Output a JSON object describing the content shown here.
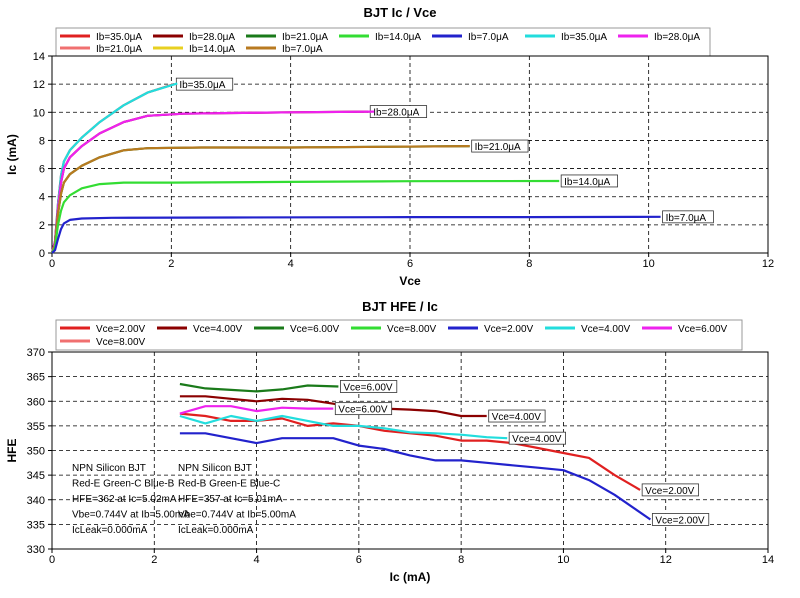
{
  "chart_data": [
    {
      "type": "line",
      "title": "BJT Ic / Vce",
      "xlabel": "Vce",
      "ylabel": "Ic (mA)",
      "xlim": [
        0,
        12
      ],
      "ylim": [
        0,
        14
      ],
      "xticks": [
        "0",
        "2",
        "4",
        "6",
        "8",
        "10",
        "12"
      ],
      "yticks": [
        "0",
        "2",
        "4",
        "6",
        "8",
        "10",
        "12",
        "14"
      ],
      "grid": true,
      "legend_position": "top",
      "legend": [
        {
          "label": "Ib=35.0μA",
          "color": "#e02020"
        },
        {
          "label": "Ib=28.0μA",
          "color": "#8b0000"
        },
        {
          "label": "Ib=21.0μA",
          "color": "#1a7a1a"
        },
        {
          "label": "Ib=14.0μA",
          "color": "#33dd33"
        },
        {
          "label": "Ib=7.0μA",
          "color": "#2222cc"
        },
        {
          "label": "Ib=35.0μA",
          "color": "#22dddd"
        },
        {
          "label": "Ib=28.0μA",
          "color": "#ee22ee"
        },
        {
          "label": "Ib=21.0μA",
          "color": "#f07070"
        },
        {
          "label": "Ib=14.0μA",
          "color": "#e8d020"
        },
        {
          "label": "Ib=7.0μA",
          "color": "#b87a20"
        }
      ],
      "series": [
        {
          "name": "Ib=35.0μA",
          "color": "#e02020",
          "end_label": "Ib=35.0μA",
          "points": [
            [
              0,
              0
            ],
            [
              0.05,
              0.8
            ],
            [
              0.1,
              3.5
            ],
            [
              0.15,
              5.5
            ],
            [
              0.2,
              6.5
            ],
            [
              0.3,
              7.3
            ],
            [
              0.5,
              8.2
            ],
            [
              0.8,
              9.3
            ],
            [
              1.2,
              10.5
            ],
            [
              1.6,
              11.4
            ],
            [
              2.05,
              12.0
            ]
          ]
        },
        {
          "name": "Ib=35.0μA",
          "color": "#22dddd",
          "points": [
            [
              0,
              0
            ],
            [
              0.05,
              0.8
            ],
            [
              0.1,
              3.5
            ],
            [
              0.15,
              5.5
            ],
            [
              0.2,
              6.5
            ],
            [
              0.3,
              7.3
            ],
            [
              0.5,
              8.2
            ],
            [
              0.8,
              9.3
            ],
            [
              1.2,
              10.5
            ],
            [
              1.6,
              11.4
            ],
            [
              2.1,
              12.05
            ]
          ]
        },
        {
          "name": "Ib=28.0μA",
          "color": "#8b0000",
          "end_label": "Ib=28.0μA",
          "points": [
            [
              0,
              0
            ],
            [
              0.05,
              0.8
            ],
            [
              0.1,
              3.2
            ],
            [
              0.15,
              5.0
            ],
            [
              0.2,
              6.0
            ],
            [
              0.3,
              6.8
            ],
            [
              0.5,
              7.6
            ],
            [
              0.8,
              8.5
            ],
            [
              1.2,
              9.3
            ],
            [
              1.6,
              9.75
            ],
            [
              2.2,
              9.9
            ],
            [
              3,
              9.95
            ],
            [
              4,
              10.0
            ],
            [
              5.3,
              10.05
            ]
          ]
        },
        {
          "name": "Ib=28.0μA",
          "color": "#ee22ee",
          "points": [
            [
              0,
              0
            ],
            [
              0.05,
              0.8
            ],
            [
              0.1,
              3.2
            ],
            [
              0.15,
              5.0
            ],
            [
              0.2,
              6.0
            ],
            [
              0.3,
              6.8
            ],
            [
              0.5,
              7.6
            ],
            [
              0.8,
              8.5
            ],
            [
              1.2,
              9.3
            ],
            [
              1.6,
              9.75
            ],
            [
              2.2,
              9.9
            ],
            [
              3,
              9.95
            ],
            [
              4,
              10.0
            ],
            [
              5.4,
              10.05
            ]
          ]
        },
        {
          "name": "Ib=21.0μA",
          "color": "#1a7a1a",
          "end_label": "Ib=21.0μA",
          "points": [
            [
              0,
              0
            ],
            [
              0.05,
              0.6
            ],
            [
              0.1,
              2.8
            ],
            [
              0.15,
              4.2
            ],
            [
              0.2,
              5.0
            ],
            [
              0.3,
              5.6
            ],
            [
              0.5,
              6.2
            ],
            [
              0.8,
              6.8
            ],
            [
              1.2,
              7.3
            ],
            [
              1.6,
              7.45
            ],
            [
              2.5,
              7.5
            ],
            [
              4,
              7.5
            ],
            [
              5.5,
              7.55
            ],
            [
              7.0,
              7.6
            ]
          ]
        },
        {
          "name": "Ib=21.0μA",
          "color": "#b87a20",
          "points": [
            [
              0,
              0
            ],
            [
              0.05,
              0.6
            ],
            [
              0.1,
              2.8
            ],
            [
              0.15,
              4.2
            ],
            [
              0.2,
              5.0
            ],
            [
              0.3,
              5.6
            ],
            [
              0.5,
              6.2
            ],
            [
              0.8,
              6.8
            ],
            [
              1.2,
              7.3
            ],
            [
              1.6,
              7.45
            ],
            [
              2.5,
              7.5
            ],
            [
              4,
              7.5
            ],
            [
              5.5,
              7.55
            ],
            [
              7.0,
              7.6
            ]
          ]
        },
        {
          "name": "Ib=14.0μA",
          "color": "#33dd33",
          "end_label": "Ib=14.0μA",
          "points": [
            [
              0,
              0
            ],
            [
              0.05,
              0.4
            ],
            [
              0.1,
              2.0
            ],
            [
              0.15,
              3.0
            ],
            [
              0.2,
              3.6
            ],
            [
              0.3,
              4.1
            ],
            [
              0.5,
              4.6
            ],
            [
              0.8,
              4.9
            ],
            [
              1.2,
              5.0
            ],
            [
              2,
              5.0
            ],
            [
              4,
              5.05
            ],
            [
              6,
              5.1
            ],
            [
              8.5,
              5.12
            ]
          ]
        },
        {
          "name": "Ib=7.0μA",
          "color": "#2222cc",
          "end_label": "Ib=7.0μA",
          "points": [
            [
              0,
              0
            ],
            [
              0.05,
              0.2
            ],
            [
              0.1,
              1.0
            ],
            [
              0.15,
              1.7
            ],
            [
              0.2,
              2.1
            ],
            [
              0.3,
              2.35
            ],
            [
              0.5,
              2.45
            ],
            [
              1,
              2.5
            ],
            [
              3,
              2.52
            ],
            [
              6,
              2.55
            ],
            [
              8,
              2.55
            ],
            [
              10.2,
              2.57
            ]
          ]
        }
      ]
    },
    {
      "type": "line",
      "title": "BJT HFE / Ic",
      "xlabel": "Ic (mA)",
      "ylabel": "HFE",
      "xlim": [
        0,
        14
      ],
      "ylim": [
        330,
        370
      ],
      "xticks": [
        "0",
        "2",
        "4",
        "6",
        "8",
        "10",
        "12",
        "14"
      ],
      "yticks": [
        "330",
        "335",
        "340",
        "345",
        "350",
        "355",
        "360",
        "365",
        "370"
      ],
      "grid": true,
      "legend_position": "top",
      "legend": [
        {
          "label": "Vce=2.00V",
          "color": "#e02020"
        },
        {
          "label": "Vce=4.00V",
          "color": "#8b0000"
        },
        {
          "label": "Vce=6.00V",
          "color": "#1a7a1a"
        },
        {
          "label": "Vce=8.00V",
          "color": "#33dd33"
        },
        {
          "label": "Vce=2.00V",
          "color": "#2222cc"
        },
        {
          "label": "Vce=4.00V",
          "color": "#22dddd"
        },
        {
          "label": "Vce=6.00V",
          "color": "#ee22ee"
        },
        {
          "label": "Vce=8.00V",
          "color": "#f07070"
        }
      ],
      "series": [
        {
          "name": "Vce=2.00V",
          "color": "#e02020",
          "end_label": "Vce=2.00V",
          "points": [
            [
              2.5,
              357.5
            ],
            [
              3,
              357
            ],
            [
              3.5,
              356
            ],
            [
              4,
              356
            ],
            [
              4.5,
              356.5
            ],
            [
              5,
              355
            ],
            [
              5.5,
              355.5
            ],
            [
              6,
              355
            ],
            [
              6.5,
              354
            ],
            [
              7,
              353.5
            ],
            [
              7.5,
              353
            ],
            [
              8,
              352
            ],
            [
              8.5,
              352
            ],
            [
              9,
              351.5
            ],
            [
              9.5,
              350.5
            ],
            [
              10,
              349.5
            ],
            [
              10.5,
              348.5
            ],
            [
              11,
              345
            ],
            [
              11.5,
              342
            ]
          ]
        },
        {
          "name": "Vce=4.00V",
          "color": "#8b0000",
          "end_label": "Vce=4.00V",
          "points": [
            [
              2.5,
              361
            ],
            [
              3,
              361
            ],
            [
              3.5,
              360.5
            ],
            [
              4,
              360
            ],
            [
              4.5,
              360.5
            ],
            [
              5,
              360.3
            ],
            [
              5.5,
              359.5
            ],
            [
              6,
              358.5
            ],
            [
              6.5,
              358.5
            ],
            [
              7,
              358.3
            ],
            [
              7.5,
              358
            ],
            [
              8,
              357
            ],
            [
              8.5,
              357
            ]
          ]
        },
        {
          "name": "Vce=6.00V",
          "color": "#1a7a1a",
          "end_label": "Vce=6.00V",
          "points": [
            [
              2.5,
              363.5
            ],
            [
              3,
              362.6
            ],
            [
              3.5,
              362.3
            ],
            [
              4,
              362
            ],
            [
              4.5,
              362.4
            ],
            [
              5,
              363.2
            ],
            [
              5.6,
              363
            ]
          ]
        },
        {
          "name": "Vce=2.00V",
          "color": "#2222cc",
          "end_label": "Vce=2.00V",
          "points": [
            [
              2.5,
              353.5
            ],
            [
              3,
              353.5
            ],
            [
              3.5,
              352.5
            ],
            [
              4,
              351.5
            ],
            [
              4.5,
              352.5
            ],
            [
              5,
              352.5
            ],
            [
              5.5,
              352.5
            ],
            [
              6,
              351
            ],
            [
              6.5,
              350.3
            ],
            [
              7,
              349
            ],
            [
              7.5,
              348
            ],
            [
              8,
              348
            ],
            [
              8.5,
              347.5
            ],
            [
              9,
              347
            ],
            [
              9.5,
              346.5
            ],
            [
              10,
              346
            ],
            [
              10.5,
              344
            ],
            [
              11,
              341
            ],
            [
              11.7,
              336
            ]
          ]
        },
        {
          "name": "Vce=4.00V",
          "color": "#22dddd",
          "end_label": "Vce=4.00V",
          "points": [
            [
              2.5,
              357
            ],
            [
              3,
              355.5
            ],
            [
              3.5,
              357
            ],
            [
              4,
              356
            ],
            [
              4.5,
              357
            ],
            [
              5,
              356
            ],
            [
              5.5,
              355
            ],
            [
              6,
              355
            ],
            [
              6.5,
              354.5
            ],
            [
              7,
              353.7
            ],
            [
              7.5,
              353.5
            ],
            [
              8,
              353.2
            ],
            [
              8.5,
              352.7
            ],
            [
              8.9,
              352.5
            ]
          ]
        },
        {
          "name": "Vce=6.00V",
          "color": "#ee22ee",
          "end_label": "Vce=6.00V",
          "points": [
            [
              2.5,
              357.5
            ],
            [
              3,
              359
            ],
            [
              3.5,
              359
            ],
            [
              4,
              358
            ],
            [
              4.5,
              358.7
            ],
            [
              5,
              358.5
            ],
            [
              5.5,
              358.5
            ]
          ]
        }
      ],
      "annotations": [
        {
          "anchor": "left",
          "lines": [
            "NPN Silicon BJT",
            "Red-E Green-C Blue-B",
            "HFE=362 at Ic=5.02mA",
            "Vbe=0.744V at Ib=5.00mA",
            "IcLeak=0.000mA"
          ]
        },
        {
          "anchor": "middle",
          "lines": [
            "NPN Silicon BJT",
            "Red-B Green-E Blue-C",
            "HFE=357 at Ic=5.01mA",
            "Vbe=0.744V at Ib=5.00mA",
            "IcLeak=0.000mA"
          ]
        }
      ]
    }
  ]
}
